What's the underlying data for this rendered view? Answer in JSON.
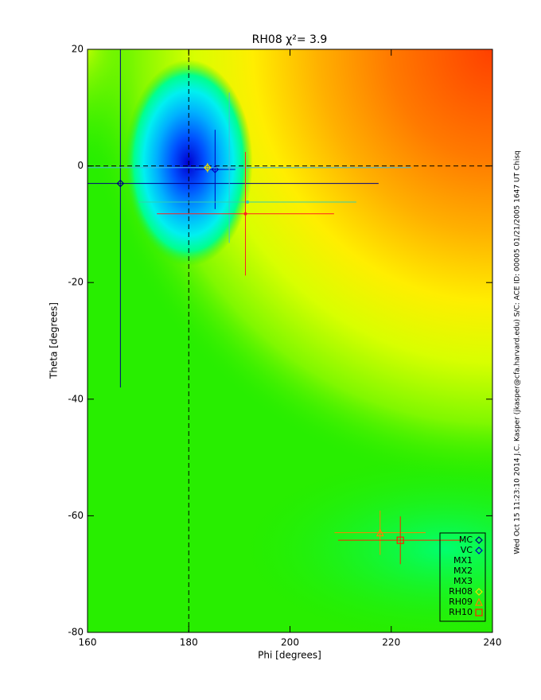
{
  "chart_data": {
    "type": "errorbar-scatter",
    "title": "RH08 χ²=   3.9",
    "x_label": "Phi [degrees]",
    "y_label": "Theta [degrees]",
    "side_note": "Wed Oct 15 11:23:10 2014   J.C. Kasper (jkasper@cfa.harvard.edu)   S/C: ACE ID: 00005 01/21/2005  1647 UT Chisq",
    "xlim": [
      160,
      240
    ],
    "ylim": [
      -80,
      20
    ],
    "xticks": [
      160,
      180,
      200,
      220,
      240
    ],
    "yticks": [
      -80,
      -60,
      -40,
      -20,
      0,
      20
    ],
    "reference_lines": {
      "phi": 180,
      "theta": 0
    },
    "legend": "lower right",
    "series": [
      {
        "name": "MC",
        "color": "#000080",
        "marker": "diamond",
        "phi": 166.5,
        "theta": -3,
        "phi_err": 51,
        "theta_err": 35
      },
      {
        "name": "VC",
        "color": "#0000c0",
        "marker": "diamond",
        "phi": 185.2,
        "theta": -0.6,
        "phi_err": 4,
        "theta_err": 6.8
      },
      {
        "name": "MX1",
        "color": "#40b8e0",
        "marker": "none",
        "phi": 188,
        "theta": -0.3,
        "phi_err": 36,
        "theta_err": 12.9
      },
      {
        "name": "MX2",
        "color": "#30d0b0",
        "marker": "none",
        "phi": 191.6,
        "theta": -6.2,
        "phi_err": 21.5,
        "theta_err": 0
      },
      {
        "name": "MX3",
        "color": "#ff2020",
        "marker": "none",
        "phi": 191.2,
        "theta": -8.2,
        "phi_err": 17.5,
        "theta_err": 10.6
      },
      {
        "name": "RH08",
        "color": "#f0e000",
        "marker": "diamond",
        "phi": 183.7,
        "theta": -0.3,
        "phi_err": 0.6,
        "theta_err": 0.8
      },
      {
        "name": "RH09",
        "color": "#ff8000",
        "marker": "triangle",
        "phi": 217.8,
        "theta": -62.9,
        "phi_err": 9,
        "theta_err": 3.8
      },
      {
        "name": "RH10",
        "color": "#ff2000",
        "marker": "square",
        "phi": 221.8,
        "theta": -64.2,
        "phi_err": 12.3,
        "theta_err": 4.1
      }
    ]
  }
}
